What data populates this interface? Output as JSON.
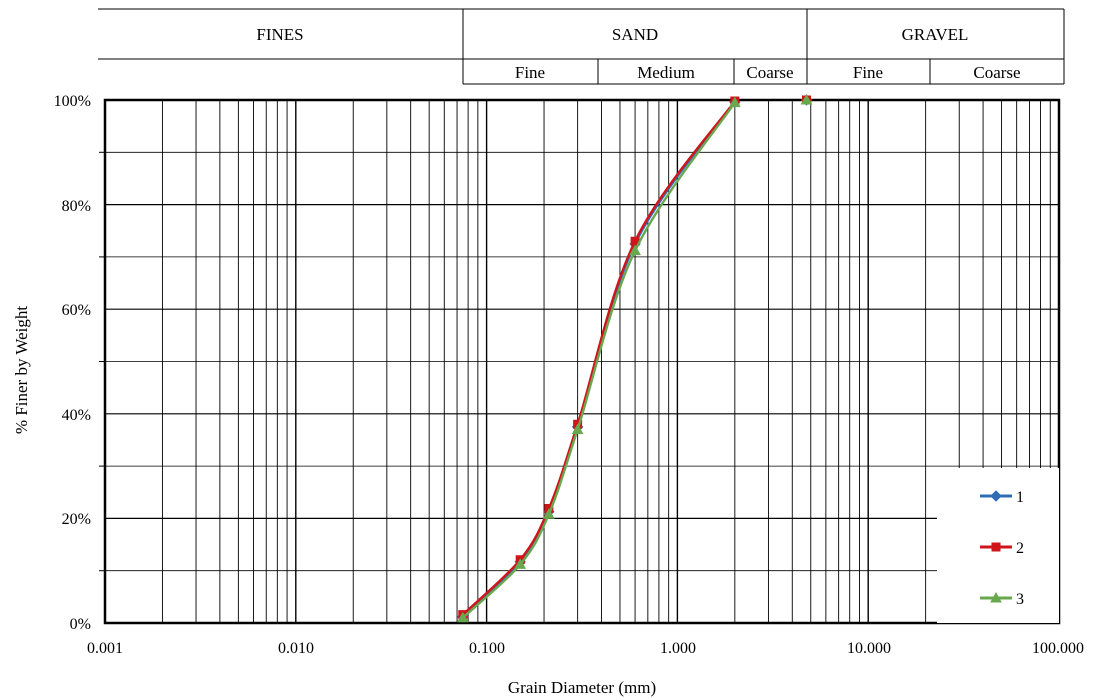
{
  "classification": {
    "main": [
      "FINES",
      "SAND",
      "GRAVEL"
    ],
    "sub": [
      "Fine",
      "Medium",
      "Coarse",
      "Fine",
      "Coarse"
    ]
  },
  "chart_data": {
    "type": "line",
    "xscale": "log",
    "xlim": [
      0.001,
      100
    ],
    "ylim": [
      0,
      100
    ],
    "grid": true,
    "legend": "bottom-right",
    "xlabel": "Grain Diameter (mm)",
    "ylabel": "% Finer by Weight",
    "x_tick_labels": [
      "0.001",
      "0.010",
      "0.100",
      "1.000",
      "10.000",
      "100.000"
    ],
    "y_tick_labels": [
      "0%",
      "20%",
      "40%",
      "60%",
      "80%",
      "100%"
    ],
    "series": [
      {
        "name": "1",
        "color": "#2f6db5",
        "marker": "diamond",
        "x": [
          0.075,
          0.15,
          0.212,
          0.3,
          0.6,
          2.0,
          4.75
        ],
        "y": [
          1.2,
          11.7,
          21.3,
          37.5,
          72.5,
          99.6,
          100
        ]
      },
      {
        "name": "2",
        "color": "#d0141c",
        "marker": "square",
        "x": [
          0.075,
          0.15,
          0.212,
          0.3,
          0.6,
          2.0,
          4.75
        ],
        "y": [
          1.6,
          12.1,
          21.9,
          38.0,
          73.0,
          99.8,
          100
        ]
      },
      {
        "name": "3",
        "color": "#6aa84f",
        "marker": "triangle",
        "x": [
          0.075,
          0.15,
          0.212,
          0.3,
          0.6,
          2.0,
          4.75
        ],
        "y": [
          1.0,
          11.2,
          20.8,
          37.0,
          71.2,
          99.5,
          100
        ]
      }
    ]
  }
}
